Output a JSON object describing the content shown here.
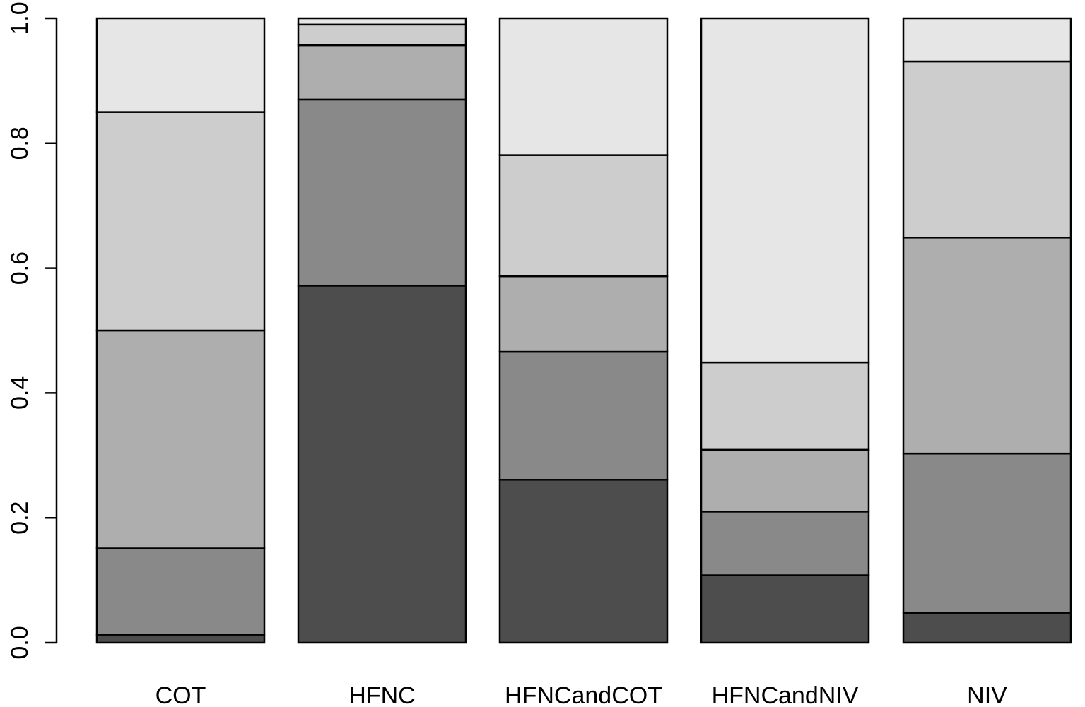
{
  "chart_data": {
    "type": "bar",
    "stacked": true,
    "categories": [
      "COT",
      "HFNC",
      "HFNCandCOT",
      "HFNCandNIV",
      "NIV"
    ],
    "series": [
      {
        "color": "#4d4d4d",
        "values": [
          0.013,
          0.572,
          0.261,
          0.108,
          0.048
        ]
      },
      {
        "color": "#898989",
        "values": [
          0.138,
          0.298,
          0.205,
          0.102,
          0.255
        ]
      },
      {
        "color": "#aeaeae",
        "values": [
          0.349,
          0.087,
          0.121,
          0.099,
          0.346
        ]
      },
      {
        "color": "#cdcdcd",
        "values": [
          0.35,
          0.033,
          0.194,
          0.14,
          0.282
        ]
      },
      {
        "color": "#e6e6e6",
        "values": [
          0.15,
          0.01,
          0.219,
          0.551,
          0.069
        ]
      }
    ],
    "yticks": [
      "0.0",
      "0.2",
      "0.4",
      "0.6",
      "0.8",
      "1.0"
    ],
    "ylim": [
      0,
      1
    ],
    "title": "",
    "xlabel": "",
    "ylabel": "",
    "grid": false,
    "legend": "none"
  }
}
